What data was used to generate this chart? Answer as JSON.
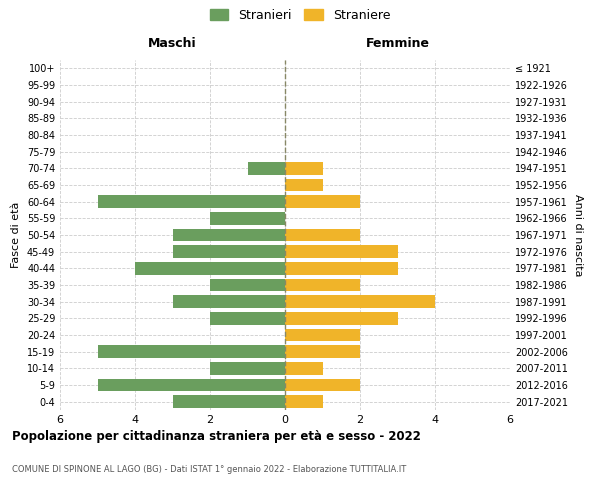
{
  "age_groups": [
    "0-4",
    "5-9",
    "10-14",
    "15-19",
    "20-24",
    "25-29",
    "30-34",
    "35-39",
    "40-44",
    "45-49",
    "50-54",
    "55-59",
    "60-64",
    "65-69",
    "70-74",
    "75-79",
    "80-84",
    "85-89",
    "90-94",
    "95-99",
    "100+"
  ],
  "birth_years": [
    "2017-2021",
    "2012-2016",
    "2007-2011",
    "2002-2006",
    "1997-2001",
    "1992-1996",
    "1987-1991",
    "1982-1986",
    "1977-1981",
    "1972-1976",
    "1967-1971",
    "1962-1966",
    "1957-1961",
    "1952-1956",
    "1947-1951",
    "1942-1946",
    "1937-1941",
    "1932-1936",
    "1927-1931",
    "1922-1926",
    "≤ 1921"
  ],
  "males": [
    3,
    5,
    2,
    5,
    0,
    2,
    3,
    2,
    4,
    3,
    3,
    2,
    5,
    0,
    1,
    0,
    0,
    0,
    0,
    0,
    0
  ],
  "females": [
    1,
    2,
    1,
    2,
    2,
    3,
    4,
    2,
    3,
    3,
    2,
    0,
    2,
    1,
    1,
    0,
    0,
    0,
    0,
    0,
    0
  ],
  "male_color": "#6a9e5e",
  "female_color": "#f0b429",
  "title": "Popolazione per cittadinanza straniera per età e sesso - 2022",
  "subtitle": "COMUNE DI SPINONE AL LAGO (BG) - Dati ISTAT 1° gennaio 2022 - Elaborazione TUTTITALIA.IT",
  "label_maschi": "Maschi",
  "label_femmine": "Femmine",
  "ylabel_left": "Fasce di età",
  "ylabel_right": "Anni di nascita",
  "legend_male": "Stranieri",
  "legend_female": "Straniere",
  "xlim": 6,
  "background_color": "#ffffff",
  "grid_color": "#cccccc",
  "center_line_color": "#888866"
}
